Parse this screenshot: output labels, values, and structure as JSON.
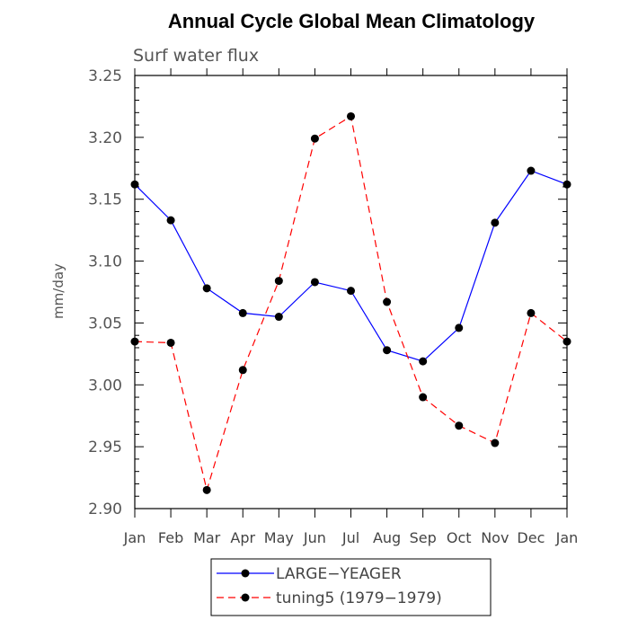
{
  "chart_data": {
    "type": "line",
    "title": "Annual Cycle Global Mean Climatology",
    "subtitle": "Surf water flux",
    "xlabel": "",
    "ylabel": "mm/day",
    "categories": [
      "Jan",
      "Feb",
      "Mar",
      "Apr",
      "May",
      "Jun",
      "Jul",
      "Aug",
      "Sep",
      "Oct",
      "Nov",
      "Dec",
      "Jan"
    ],
    "ylim": [
      2.9,
      3.25
    ],
    "yticks": [
      2.9,
      2.95,
      3.0,
      3.05,
      3.1,
      3.15,
      3.2,
      3.25
    ],
    "ytick_labels": [
      "2.90",
      "2.95",
      "3.00",
      "3.05",
      "3.10",
      "3.15",
      "3.20",
      "3.25"
    ],
    "grid": false,
    "legend_position": "bottom-center",
    "series": [
      {
        "name": "LARGE−YEAGER",
        "color": "#0000ff",
        "dash": "solid",
        "values": [
          3.162,
          3.133,
          3.078,
          3.058,
          3.055,
          3.083,
          3.076,
          3.028,
          3.019,
          3.046,
          3.131,
          3.173,
          3.162
        ]
      },
      {
        "name": "tuning5 (1979−1979)",
        "color": "#ff0000",
        "dash": "dashed",
        "values": [
          3.035,
          3.034,
          2.915,
          3.012,
          3.084,
          3.199,
          3.217,
          3.067,
          2.99,
          2.967,
          2.953,
          3.058,
          3.035
        ]
      }
    ]
  }
}
